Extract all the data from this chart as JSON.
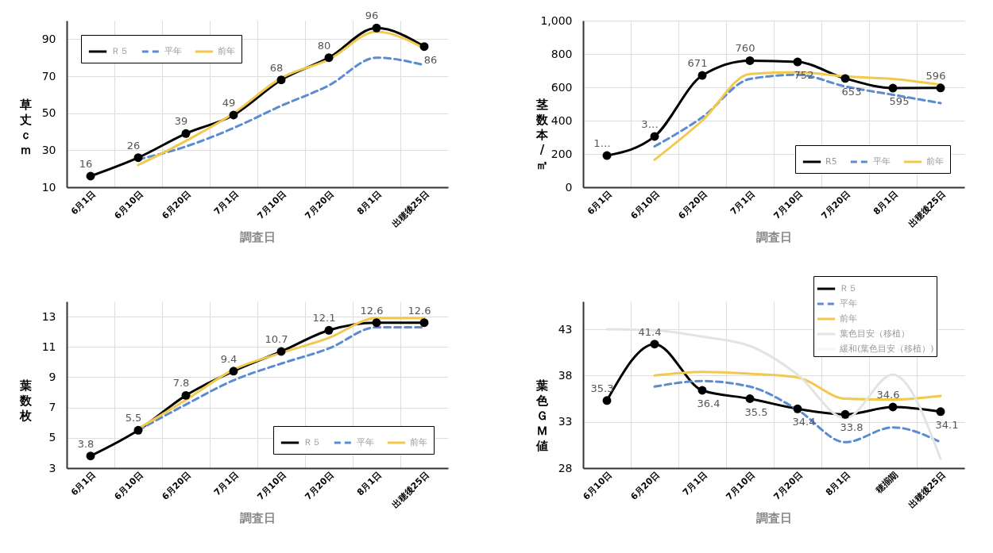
{
  "chart_data": [
    {
      "type": "line",
      "xlabel": "調査日",
      "ylabel": "草丈ｃｍ",
      "categories": [
        "6月1日",
        "6月10日",
        "6月20日",
        "7月1日",
        "7月10日",
        "7月20日",
        "8月1日",
        "出穂後25日"
      ],
      "ylim": [
        10,
        100
      ],
      "yticks": [
        10,
        30,
        50,
        70,
        90
      ],
      "grid": true,
      "legend": "top left",
      "series": [
        {
          "name": "Ｒ５",
          "color": "#000000",
          "marker": "circle",
          "values": [
            16,
            26,
            39,
            49,
            68,
            80,
            96,
            86
          ],
          "value_labels": [
            "16",
            "26",
            "39",
            "49",
            "68",
            "80",
            "96",
            "86"
          ]
        },
        {
          "name": "平年",
          "color": "#5b8bd0",
          "line_style": "dashed",
          "values": [
            null,
            25,
            32,
            42,
            54,
            65,
            80,
            76
          ]
        },
        {
          "name": "前年",
          "color": "#f2c94c",
          "values": [
            null,
            22,
            35,
            50,
            69,
            79,
            94,
            85
          ]
        }
      ]
    },
    {
      "type": "line",
      "xlabel": "調査日",
      "ylabel": "茎数本/㎡",
      "categories": [
        "6月1日",
        "6月10日",
        "6月20日",
        "7月1日",
        "7月10日",
        "7月20日",
        "8月1日",
        "出穂後25日"
      ],
      "ylim": [
        0,
        1000
      ],
      "yticks": [
        0,
        200,
        400,
        600,
        800,
        {
          "value": 1000,
          "label": "1,000"
        }
      ],
      "grid": true,
      "legend": "bottom right",
      "series": [
        {
          "name": "R5",
          "color": "#000000",
          "marker": "circle",
          "values": [
            190,
            305,
            671,
            760,
            752,
            653,
            595,
            596
          ],
          "value_labels": [
            "1…",
            "3…",
            "671",
            "760",
            "752",
            "653",
            "595",
            "596"
          ]
        },
        {
          "name": "平年",
          "color": "#5b8bd0",
          "line_style": "dashed",
          "values": [
            null,
            245,
            420,
            650,
            675,
            605,
            555,
            505
          ]
        },
        {
          "name": "前年",
          "color": "#f2c94c",
          "values": [
            null,
            165,
            400,
            680,
            690,
            665,
            650,
            615
          ]
        }
      ]
    },
    {
      "type": "line",
      "xlabel": "調査日",
      "ylabel": "葉数枚",
      "categories": [
        "6月1日",
        "6月10日",
        "6月20日",
        "7月1日",
        "7月10日",
        "7月20日",
        "8月1日",
        "出穂後25日"
      ],
      "ylim": [
        3,
        14
      ],
      "yticks": [
        3,
        5,
        7,
        9,
        11,
        13
      ],
      "grid": true,
      "legend": "bottom right",
      "series": [
        {
          "name": "Ｒ５",
          "color": "#000000",
          "marker": "circle",
          "values": [
            3.8,
            5.5,
            7.8,
            9.4,
            10.7,
            12.1,
            12.6,
            12.6
          ],
          "value_labels": [
            "3.8",
            "5.5",
            "7.8",
            "9.4",
            "10.7",
            "12.1",
            "12.6",
            "12.6"
          ]
        },
        {
          "name": "平年",
          "color": "#5b8bd0",
          "line_style": "dashed",
          "values": [
            null,
            5.5,
            7.2,
            8.8,
            9.9,
            10.9,
            12.3,
            12.3
          ]
        },
        {
          "name": "前年",
          "color": "#f2c94c",
          "values": [
            null,
            5.6,
            7.5,
            9.5,
            10.6,
            11.6,
            12.9,
            12.9
          ]
        }
      ]
    },
    {
      "type": "line",
      "xlabel": "調査日",
      "ylabel": "葉色ＧＭ値",
      "categories": [
        "6月10日",
        "6月20日",
        "7月1日",
        "7月10日",
        "7月20日",
        "8月1日",
        "穂揃期",
        "出穂後25日"
      ],
      "ylim": [
        28,
        46
      ],
      "yticks": [
        28,
        33,
        38,
        43
      ],
      "grid": true,
      "legend": "top right",
      "series": [
        {
          "name": "Ｒ５",
          "color": "#000000",
          "marker": "circle",
          "values": [
            35.3,
            41.4,
            36.4,
            35.5,
            34.4,
            33.8,
            34.6,
            34.1
          ],
          "value_labels": [
            "35.3",
            "41.4",
            "36.4",
            "35.5",
            "34.4",
            "33.8",
            "34.6",
            "34.1"
          ]
        },
        {
          "name": "平年",
          "color": "#5b8bd0",
          "line_style": "dashed",
          "values": [
            null,
            36.8,
            37.4,
            36.8,
            34.3,
            30.8,
            32.4,
            30.8
          ]
        },
        {
          "name": "前年",
          "color": "#f2c94c",
          "values": [
            null,
            38.0,
            38.4,
            38.2,
            37.8,
            35.5,
            35.4,
            35.8
          ]
        },
        {
          "name": "葉色目安（移植）",
          "color": "#e3e3e3",
          "values": [
            43,
            42.9,
            42.2,
            41.2,
            38.1,
            33.4,
            38.1,
            29
          ]
        },
        {
          "name": "緩和(葉色目安（移植）)",
          "color": "#f4f4f4",
          "values": [
            null,
            null,
            null,
            null,
            null,
            null,
            null,
            null
          ]
        }
      ]
    }
  ]
}
